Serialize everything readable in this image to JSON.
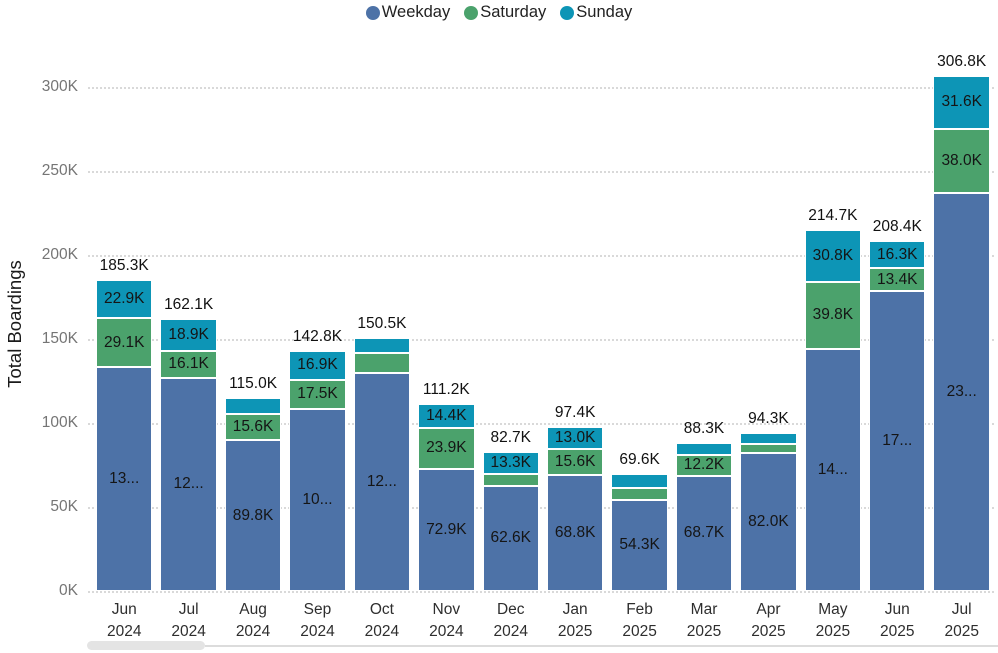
{
  "legend": {
    "items": [
      {
        "label": "Weekday",
        "color": "#4d72a7"
      },
      {
        "label": "Saturday",
        "color": "#4ba26c"
      },
      {
        "label": "Sunday",
        "color": "#0d95b6"
      }
    ]
  },
  "y_axis": {
    "title": "Total Boardings",
    "ticks": [
      {
        "label": "0K",
        "value": 0
      },
      {
        "label": "50K",
        "value": 50
      },
      {
        "label": "100K",
        "value": 100
      },
      {
        "label": "150K",
        "value": 150
      },
      {
        "label": "200K",
        "value": 200
      },
      {
        "label": "250K",
        "value": 250
      },
      {
        "label": "300K",
        "value": 300
      }
    ]
  },
  "chart_data": {
    "type": "bar",
    "stacked": true,
    "title": "",
    "xlabel": "",
    "ylabel": "Total Boardings",
    "unit": "thousands of boardings (K)",
    "ylim": [
      0,
      320
    ],
    "grid": "horizontal-dotted",
    "legend_position": "top-center",
    "categories": [
      {
        "month": "Jun",
        "year": "2024"
      },
      {
        "month": "Jul",
        "year": "2024"
      },
      {
        "month": "Aug",
        "year": "2024"
      },
      {
        "month": "Sep",
        "year": "2024"
      },
      {
        "month": "Oct",
        "year": "2024"
      },
      {
        "month": "Nov",
        "year": "2024"
      },
      {
        "month": "Dec",
        "year": "2024"
      },
      {
        "month": "Jan",
        "year": "2025"
      },
      {
        "month": "Feb",
        "year": "2025"
      },
      {
        "month": "Mar",
        "year": "2025"
      },
      {
        "month": "Apr",
        "year": "2025"
      },
      {
        "month": "May",
        "year": "2025"
      },
      {
        "month": "Jun",
        "year": "2025"
      },
      {
        "month": "Jul",
        "year": "2025"
      }
    ],
    "series": [
      {
        "name": "Weekday",
        "color": "#4d72a7",
        "values": [
          133.3,
          127.1,
          89.8,
          108.4,
          129.6,
          72.9,
          62.6,
          68.8,
          54.3,
          68.7,
          82.0,
          144.1,
          178.7,
          237.2
        ],
        "labels": [
          "13...",
          "12...",
          "89.8K",
          "10...",
          "12...",
          "72.9K",
          "62.6K",
          "68.8K",
          "54.3K",
          "68.7K",
          "82.0K",
          "14...",
          "17...",
          "23..."
        ]
      },
      {
        "name": "Saturday",
        "color": "#4ba26c",
        "values": [
          29.1,
          16.1,
          15.6,
          17.5,
          11.9,
          23.9,
          6.8,
          15.6,
          7.0,
          12.2,
          5.3,
          39.8,
          13.4,
          38.0
        ],
        "labels": [
          "29.1K",
          "16.1K",
          "15.6K",
          "17.5K",
          "",
          "23.9K",
          "",
          "15.6K",
          "",
          "12.2K",
          "",
          "39.8K",
          "13.4K",
          "38.0K"
        ]
      },
      {
        "name": "Sunday",
        "color": "#0d95b6",
        "values": [
          22.9,
          18.9,
          9.6,
          16.9,
          9.0,
          14.4,
          13.3,
          13.0,
          8.3,
          7.4,
          7.0,
          30.8,
          16.3,
          31.6
        ],
        "labels": [
          "22.9K",
          "18.9K",
          "",
          "16.9K",
          "",
          "14.4K",
          "13.3K",
          "13.0K",
          "",
          "",
          "",
          "30.8K",
          "16.3K",
          "31.6K"
        ]
      }
    ],
    "totals": [
      185.3,
      162.1,
      115.0,
      142.8,
      150.5,
      111.2,
      82.7,
      97.4,
      69.6,
      88.3,
      94.3,
      214.7,
      208.4,
      306.8
    ],
    "total_labels": [
      "185.3K",
      "162.1K",
      "115.0K",
      "142.8K",
      "150.5K",
      "111.2K",
      "82.7K",
      "97.4K",
      "69.6K",
      "88.3K",
      "94.3K",
      "214.7K",
      "208.4K",
      "306.8K"
    ]
  }
}
